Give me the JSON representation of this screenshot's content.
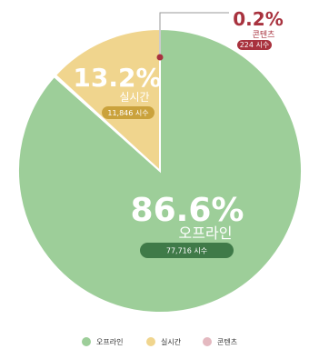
{
  "chart_data": {
    "type": "pie",
    "title": "",
    "slices": [
      {
        "key": "offline",
        "name": "오프라인",
        "percent": 86.6,
        "percent_label": "86.6%",
        "count_label": "77,716 시수",
        "color": "#9dce99",
        "pill_color": "#3f7a48"
      },
      {
        "key": "realtime",
        "name": "실시간",
        "percent": 13.2,
        "percent_label": "13.2%",
        "count_label": "11,846 시수",
        "color": "#f0d58e",
        "pill_color": "#caa23c"
      },
      {
        "key": "content",
        "name": "콘텐츠",
        "percent": 0.2,
        "percent_label": "0.2%",
        "count_label": "224 시수",
        "color": "#e4b9c0",
        "pill_color": "#a8323e"
      }
    ],
    "legend": {
      "placement": "bottom",
      "items": [
        "오프라인",
        "실시간",
        "콘텐츠"
      ]
    }
  }
}
